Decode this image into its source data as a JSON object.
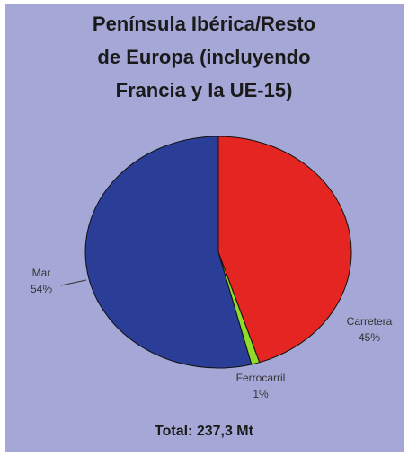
{
  "chart_data": {
    "type": "pie",
    "title_lines": [
      "Península Ibérica/Resto",
      "de Europa (incluyendo",
      "Francia y la UE-15)"
    ],
    "slices": [
      {
        "name": "Carretera",
        "pct_label": "45%",
        "value": 45,
        "color": "#e52521"
      },
      {
        "name": "Ferrocarril",
        "pct_label": "1%",
        "value": 1,
        "color": "#8fdc2a"
      },
      {
        "name": "Mar",
        "pct_label": "54%",
        "value": 54,
        "color": "#2a3e97"
      }
    ],
    "footer": "Total: 237,3 Mt"
  }
}
